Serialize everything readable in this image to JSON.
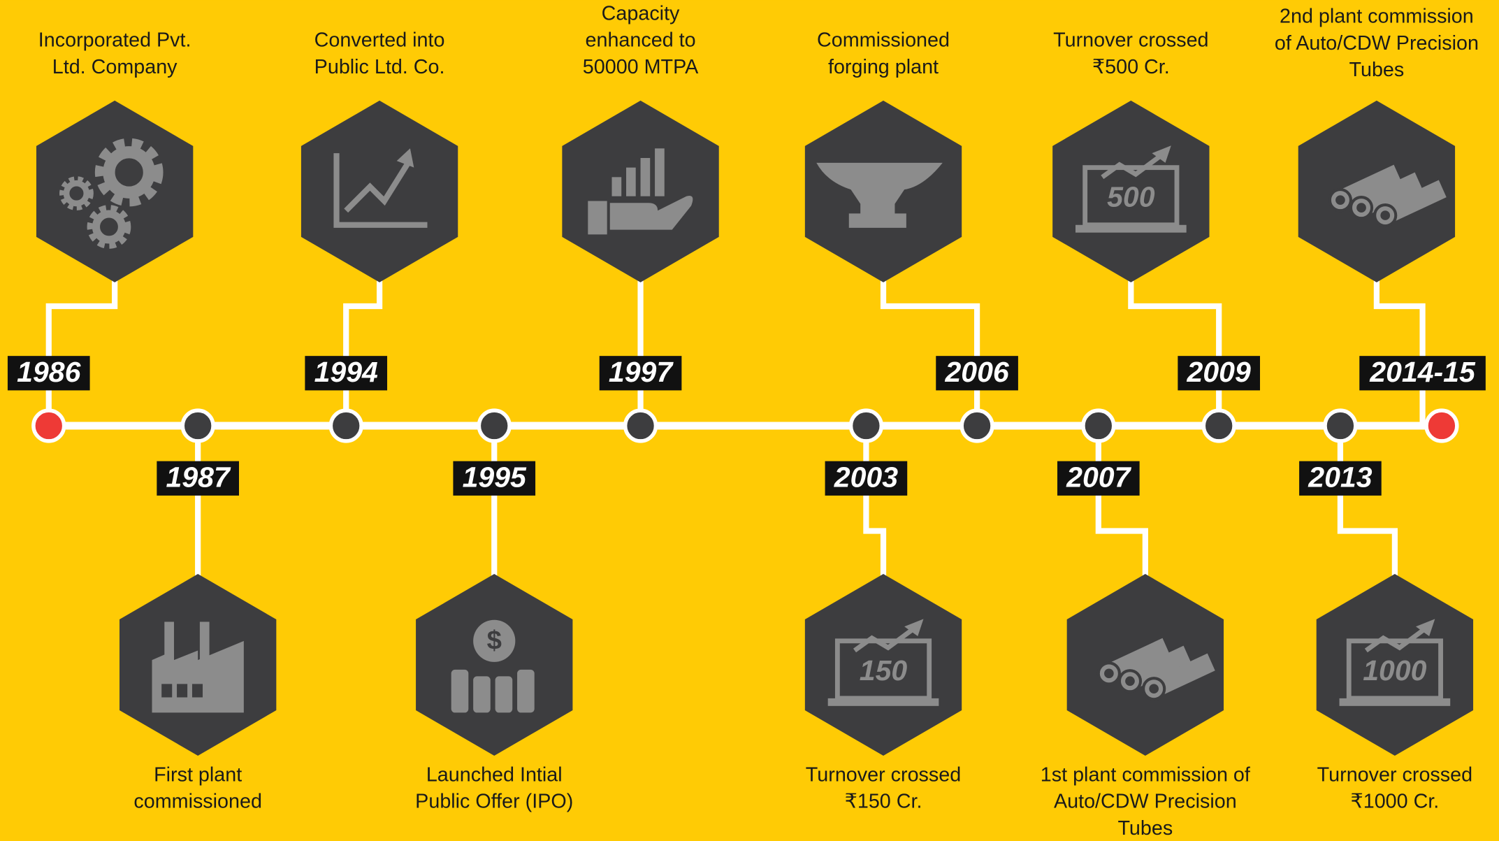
{
  "timeline": {
    "events": [
      {
        "year": "1986",
        "side": "top",
        "icon": "gears",
        "label": [
          "Incorporated Pvt.",
          "Ltd. Company"
        ]
      },
      {
        "year": "1987",
        "side": "bottom",
        "icon": "factory",
        "label": [
          "First plant",
          "commissioned"
        ]
      },
      {
        "year": "1994",
        "side": "top",
        "icon": "growth",
        "label": [
          "Converted into",
          "Public Ltd. Co."
        ]
      },
      {
        "year": "1995",
        "side": "bottom",
        "icon": "ipo",
        "label": [
          "Launched Intial",
          "Public Offer (IPO)"
        ]
      },
      {
        "year": "1997",
        "side": "top",
        "icon": "capacity",
        "label": [
          "Capacity",
          "enhanced to",
          "50000 MTPA"
        ]
      },
      {
        "year": "2003",
        "side": "bottom",
        "icon": "laptop",
        "icon_text": "150",
        "label": [
          "Turnover crossed",
          "₹150 Cr."
        ]
      },
      {
        "year": "2006",
        "side": "top",
        "icon": "anvil",
        "label": [
          "Commissioned",
          "forging plant"
        ]
      },
      {
        "year": "2007",
        "side": "bottom",
        "icon": "tubes",
        "label": [
          "1st plant commission of",
          "Auto/CDW Precision",
          "Tubes"
        ]
      },
      {
        "year": "2009",
        "side": "top",
        "icon": "laptop",
        "icon_text": "500",
        "label": [
          "Turnover crossed",
          "₹500 Cr."
        ]
      },
      {
        "year": "2013",
        "side": "bottom",
        "icon": "laptop",
        "icon_text": "1000",
        "label": [
          "Turnover crossed",
          "₹1000 Cr."
        ]
      },
      {
        "year": "2014-15",
        "side": "top",
        "icon": "tubes",
        "label": [
          "2nd plant commission",
          "of Auto/CDW Precision",
          "Tubes"
        ]
      }
    ]
  }
}
